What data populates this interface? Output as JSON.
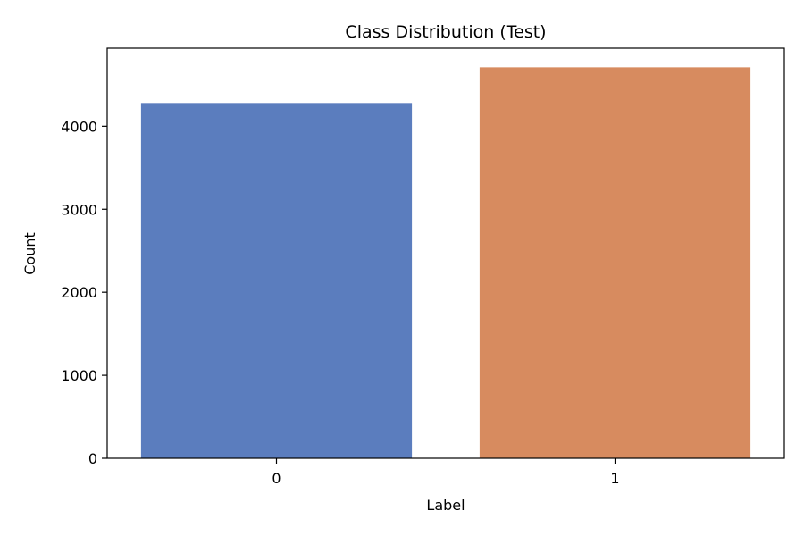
{
  "chart_data": {
    "type": "bar",
    "title": "Class Distribution (Test)",
    "xlabel": "Label",
    "ylabel": "Count",
    "categories": [
      "0",
      "1"
    ],
    "values": [
      4280,
      4710
    ],
    "colors": [
      "#5b7dbe",
      "#d78b5f"
    ],
    "ylim": [
      0,
      4940
    ],
    "yticks": [
      0,
      1000,
      2000,
      3000,
      4000
    ],
    "ytick_labels": [
      "0",
      "1000",
      "2000",
      "3000",
      "4000"
    ],
    "grid": false,
    "legend": "none"
  }
}
